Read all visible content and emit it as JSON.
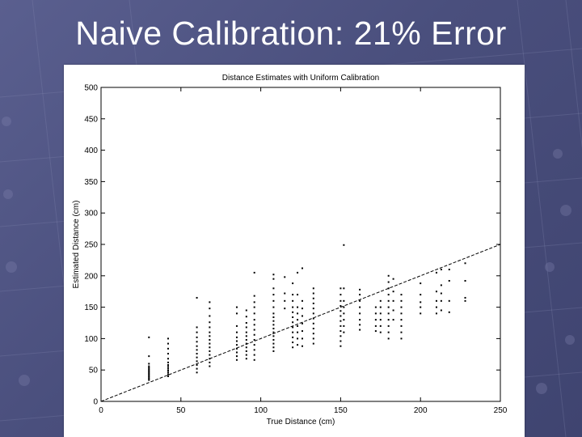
{
  "slide": {
    "title": "Naive Calibration: 21% Error"
  },
  "chart_data": {
    "type": "scatter",
    "title": "Distance Estimates with Uniform Calibration",
    "xlabel": "True Distance (cm)",
    "ylabel": "Estimated Distance (cm)",
    "xlim": [
      0,
      250
    ],
    "ylim": [
      0,
      500
    ],
    "xticks": [
      0,
      50,
      100,
      150,
      200,
      250
    ],
    "yticks": [
      0,
      50,
      100,
      150,
      200,
      250,
      300,
      350,
      400,
      450,
      500
    ],
    "grid": false,
    "reference_line": {
      "x": [
        0,
        250
      ],
      "y": [
        0,
        250
      ]
    },
    "series": [
      {
        "points": [
          [
            30,
            102
          ],
          [
            30,
            72
          ],
          [
            30,
            60
          ],
          [
            30,
            56
          ],
          [
            30,
            54
          ],
          [
            30,
            52
          ],
          [
            30,
            50
          ],
          [
            30,
            48
          ],
          [
            30,
            46
          ],
          [
            30,
            44
          ],
          [
            30,
            42
          ],
          [
            30,
            40
          ],
          [
            30,
            38
          ],
          [
            30,
            36
          ],
          [
            30,
            34
          ],
          [
            42,
            100
          ],
          [
            42,
            92
          ],
          [
            42,
            84
          ],
          [
            42,
            76
          ],
          [
            42,
            68
          ],
          [
            42,
            62
          ],
          [
            42,
            58
          ],
          [
            42,
            55
          ],
          [
            42,
            52
          ],
          [
            42,
            49
          ],
          [
            42,
            46
          ],
          [
            42,
            43
          ],
          [
            42,
            40
          ],
          [
            60,
            165
          ],
          [
            60,
            118
          ],
          [
            60,
            110
          ],
          [
            60,
            102
          ],
          [
            60,
            95
          ],
          [
            60,
            88
          ],
          [
            60,
            82
          ],
          [
            60,
            76
          ],
          [
            60,
            70
          ],
          [
            60,
            64
          ],
          [
            60,
            58
          ],
          [
            60,
            52
          ],
          [
            60,
            46
          ],
          [
            68,
            158
          ],
          [
            68,
            148
          ],
          [
            68,
            136
          ],
          [
            68,
            126
          ],
          [
            68,
            118
          ],
          [
            68,
            110
          ],
          [
            68,
            104
          ],
          [
            68,
            98
          ],
          [
            68,
            92
          ],
          [
            68,
            86
          ],
          [
            68,
            80
          ],
          [
            68,
            74
          ],
          [
            68,
            68
          ],
          [
            68,
            62
          ],
          [
            68,
            56
          ],
          [
            85,
            150
          ],
          [
            85,
            140
          ],
          [
            85,
            120
          ],
          [
            85,
            110
          ],
          [
            85,
            102
          ],
          [
            85,
            96
          ],
          [
            85,
            90
          ],
          [
            85,
            84
          ],
          [
            85,
            78
          ],
          [
            85,
            72
          ],
          [
            85,
            66
          ],
          [
            91,
            145
          ],
          [
            91,
            135
          ],
          [
            91,
            125
          ],
          [
            91,
            118
          ],
          [
            91,
            110
          ],
          [
            91,
            104
          ],
          [
            91,
            98
          ],
          [
            91,
            92
          ],
          [
            91,
            86
          ],
          [
            91,
            80
          ],
          [
            91,
            74
          ],
          [
            91,
            68
          ],
          [
            96,
            205
          ],
          [
            96,
            168
          ],
          [
            96,
            158
          ],
          [
            96,
            150
          ],
          [
            96,
            140
          ],
          [
            96,
            130
          ],
          [
            96,
            122
          ],
          [
            96,
            114
          ],
          [
            96,
            106
          ],
          [
            96,
            98
          ],
          [
            96,
            90
          ],
          [
            96,
            82
          ],
          [
            96,
            74
          ],
          [
            96,
            66
          ],
          [
            108,
            202
          ],
          [
            108,
            195
          ],
          [
            108,
            180
          ],
          [
            108,
            170
          ],
          [
            108,
            160
          ],
          [
            108,
            150
          ],
          [
            108,
            140
          ],
          [
            108,
            134
          ],
          [
            108,
            128
          ],
          [
            108,
            122
          ],
          [
            108,
            116
          ],
          [
            108,
            110
          ],
          [
            108,
            104
          ],
          [
            108,
            98
          ],
          [
            108,
            92
          ],
          [
            108,
            86
          ],
          [
            108,
            80
          ],
          [
            115,
            198
          ],
          [
            115,
            172
          ],
          [
            115,
            160
          ],
          [
            115,
            148
          ],
          [
            120,
            188
          ],
          [
            120,
            170
          ],
          [
            120,
            160
          ],
          [
            120,
            150
          ],
          [
            120,
            142
          ],
          [
            120,
            134
          ],
          [
            120,
            126
          ],
          [
            120,
            118
          ],
          [
            120,
            110
          ],
          [
            120,
            102
          ],
          [
            120,
            94
          ],
          [
            120,
            86
          ],
          [
            123,
            205
          ],
          [
            123,
            170
          ],
          [
            123,
            150
          ],
          [
            123,
            140
          ],
          [
            123,
            130
          ],
          [
            123,
            120
          ],
          [
            123,
            110
          ],
          [
            123,
            100
          ],
          [
            123,
            90
          ],
          [
            126,
            212
          ],
          [
            126,
            160
          ],
          [
            126,
            148
          ],
          [
            126,
            136
          ],
          [
            126,
            124
          ],
          [
            126,
            112
          ],
          [
            126,
            100
          ],
          [
            126,
            88
          ],
          [
            133,
            180
          ],
          [
            133,
            172
          ],
          [
            133,
            164
          ],
          [
            133,
            156
          ],
          [
            133,
            148
          ],
          [
            133,
            140
          ],
          [
            133,
            132
          ],
          [
            133,
            124
          ],
          [
            133,
            116
          ],
          [
            133,
            108
          ],
          [
            133,
            100
          ],
          [
            133,
            92
          ],
          [
            150,
            180
          ],
          [
            150,
            170
          ],
          [
            150,
            160
          ],
          [
            150,
            152
          ],
          [
            150,
            144
          ],
          [
            150,
            136
          ],
          [
            150,
            128
          ],
          [
            150,
            120
          ],
          [
            150,
            112
          ],
          [
            150,
            104
          ],
          [
            150,
            96
          ],
          [
            150,
            88
          ],
          [
            152,
            249
          ],
          [
            152,
            180
          ],
          [
            152,
            160
          ],
          [
            152,
            150
          ],
          [
            152,
            140
          ],
          [
            152,
            130
          ],
          [
            152,
            120
          ],
          [
            152,
            110
          ],
          [
            162,
            178
          ],
          [
            162,
            170
          ],
          [
            162,
            160
          ],
          [
            162,
            150
          ],
          [
            162,
            140
          ],
          [
            162,
            130
          ],
          [
            162,
            122
          ],
          [
            162,
            114
          ],
          [
            172,
            150
          ],
          [
            172,
            140
          ],
          [
            172,
            130
          ],
          [
            172,
            120
          ],
          [
            172,
            112
          ],
          [
            175,
            160
          ],
          [
            175,
            150
          ],
          [
            175,
            140
          ],
          [
            175,
            130
          ],
          [
            175,
            120
          ],
          [
            175,
            110
          ],
          [
            180,
            200
          ],
          [
            180,
            190
          ],
          [
            180,
            180
          ],
          [
            180,
            170
          ],
          [
            180,
            160
          ],
          [
            180,
            150
          ],
          [
            180,
            140
          ],
          [
            180,
            130
          ],
          [
            180,
            120
          ],
          [
            180,
            110
          ],
          [
            180,
            100
          ],
          [
            183,
            195
          ],
          [
            183,
            175
          ],
          [
            183,
            160
          ],
          [
            183,
            145
          ],
          [
            183,
            130
          ],
          [
            188,
            170
          ],
          [
            188,
            160
          ],
          [
            188,
            150
          ],
          [
            188,
            140
          ],
          [
            188,
            130
          ],
          [
            188,
            120
          ],
          [
            188,
            110
          ],
          [
            188,
            100
          ],
          [
            200,
            188
          ],
          [
            200,
            170
          ],
          [
            200,
            158
          ],
          [
            200,
            150
          ],
          [
            200,
            140
          ],
          [
            210,
            205
          ],
          [
            210,
            175
          ],
          [
            210,
            160
          ],
          [
            210,
            150
          ],
          [
            210,
            140
          ],
          [
            213,
            210
          ],
          [
            213,
            185
          ],
          [
            213,
            172
          ],
          [
            213,
            160
          ],
          [
            213,
            145
          ],
          [
            218,
            210
          ],
          [
            218,
            192
          ],
          [
            218,
            160
          ],
          [
            218,
            142
          ],
          [
            228,
            220
          ],
          [
            228,
            192
          ],
          [
            228,
            165
          ],
          [
            228,
            160
          ]
        ]
      }
    ]
  }
}
